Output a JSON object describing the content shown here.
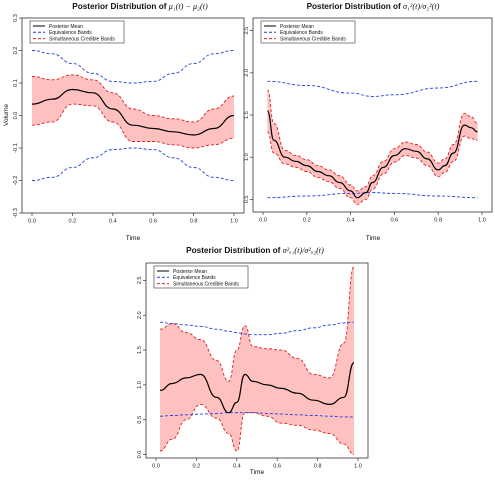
{
  "legend": [
    "Posterior Mean",
    "Equivalence Bands",
    "Simultaneous Credible Bands"
  ],
  "colors": {
    "mean": "#000000",
    "equivalence": "#1f3fe0",
    "credible_line": "#e02020",
    "credible_fill": "#ffc0c0"
  },
  "chart_data": [
    {
      "type": "line",
      "title_prefix": "Posterior Distribution of ",
      "title_math": "μ₁(t) − μ₂(t)",
      "xlabel": "Time",
      "ylabel": "Volume",
      "xlim": [
        0,
        1
      ],
      "ylim": [
        -0.3,
        0.3
      ],
      "xticks": [
        "0.0",
        "0.2",
        "0.4",
        "0.6",
        "0.8",
        "1.0"
      ],
      "yticks": [
        "-0.3",
        "-0.2",
        "-0.1",
        "0.0",
        "0.1",
        "0.2",
        "0.3"
      ],
      "x": [
        0.0,
        0.1,
        0.2,
        0.3,
        0.4,
        0.5,
        0.6,
        0.7,
        0.8,
        0.9,
        1.0
      ],
      "series": [
        {
          "name": "Posterior Mean",
          "values": [
            0.035,
            0.05,
            0.08,
            0.07,
            0.02,
            -0.03,
            -0.04,
            -0.05,
            -0.06,
            -0.04,
            0.0
          ]
        },
        {
          "name": "Simultaneous Credible Bands",
          "upper": [
            0.12,
            0.11,
            0.125,
            0.11,
            0.07,
            0.02,
            0.0,
            -0.01,
            -0.02,
            0.02,
            0.06
          ],
          "lower": [
            -0.03,
            -0.02,
            0.035,
            0.03,
            -0.02,
            -0.08,
            -0.08,
            -0.09,
            -0.1,
            -0.09,
            -0.07
          ]
        },
        {
          "name": "Equivalence Bands",
          "upper": [
            0.2,
            0.19,
            0.16,
            0.13,
            0.105,
            0.1,
            0.105,
            0.13,
            0.16,
            0.19,
            0.2
          ],
          "lower": [
            -0.2,
            -0.19,
            -0.16,
            -0.13,
            -0.105,
            -0.1,
            -0.105,
            -0.13,
            -0.16,
            -0.19,
            -0.2
          ]
        }
      ],
      "legend_position": "top-left"
    },
    {
      "type": "line",
      "title_prefix": "Posterior Distribution of ",
      "title_math": "σ₁²(t)/σ₂²(t)",
      "xlabel": "Time",
      "ylabel": "",
      "xlim": [
        0,
        1
      ],
      "ylim": [
        0.35,
        2.65
      ],
      "xticks": [
        "0.0",
        "0.2",
        "0.4",
        "0.6",
        "0.8",
        "1.0"
      ],
      "yticks": [
        "0.5",
        "1.0",
        "1.5",
        "2.0",
        "2.5"
      ],
      "x": [
        0.02,
        0.05,
        0.1,
        0.15,
        0.2,
        0.25,
        0.3,
        0.35,
        0.4,
        0.43,
        0.47,
        0.5,
        0.55,
        0.6,
        0.65,
        0.7,
        0.75,
        0.8,
        0.83,
        0.87,
        0.92,
        0.95,
        0.98
      ],
      "series": [
        {
          "name": "Posterior Mean",
          "values": [
            1.55,
            1.2,
            1.0,
            0.95,
            0.9,
            0.83,
            0.78,
            0.7,
            0.6,
            0.52,
            0.58,
            0.7,
            0.88,
            1.02,
            1.1,
            1.07,
            0.98,
            0.85,
            0.9,
            1.05,
            1.38,
            1.35,
            1.3
          ]
        },
        {
          "name": "Simultaneous Credible Bands",
          "upper": [
            1.8,
            1.4,
            1.08,
            1.02,
            0.97,
            0.9,
            0.85,
            0.78,
            0.67,
            0.6,
            0.65,
            0.78,
            0.95,
            1.1,
            1.18,
            1.15,
            1.06,
            0.93,
            0.98,
            1.15,
            1.52,
            1.48,
            1.4
          ],
          "lower": [
            1.3,
            1.05,
            0.92,
            0.88,
            0.83,
            0.76,
            0.71,
            0.63,
            0.52,
            0.44,
            0.5,
            0.62,
            0.8,
            0.94,
            1.02,
            0.99,
            0.9,
            0.77,
            0.82,
            0.95,
            1.25,
            1.22,
            1.2
          ]
        },
        {
          "name": "Equivalence Bands",
          "upper_x": [
            0.02,
            0.2,
            0.4,
            0.5,
            0.6,
            0.8,
            0.98
          ],
          "upper": [
            1.9,
            1.85,
            1.76,
            1.72,
            1.74,
            1.82,
            1.9
          ],
          "lower": [
            0.52,
            0.54,
            0.57,
            0.58,
            0.57,
            0.54,
            0.52
          ]
        }
      ],
      "legend_position": "top-left"
    },
    {
      "type": "line",
      "title_prefix": "Posterior Distribution of ",
      "title_math": "σ²ₐ₁(t)/σ²ₐ₂(t)",
      "xlabel": "Time",
      "ylabel": "",
      "xlim": [
        0,
        1
      ],
      "ylim": [
        -0.05,
        2.75
      ],
      "xticks": [
        "0.0",
        "0.2",
        "0.4",
        "0.6",
        "0.8",
        "1.0"
      ],
      "yticks": [
        "0.0",
        "0.5",
        "1.0",
        "1.5",
        "2.0",
        "2.5"
      ],
      "x": [
        0.02,
        0.08,
        0.15,
        0.22,
        0.3,
        0.36,
        0.4,
        0.44,
        0.48,
        0.55,
        0.62,
        0.7,
        0.78,
        0.86,
        0.93,
        0.98
      ],
      "series": [
        {
          "name": "Posterior Mean",
          "values": [
            0.92,
            1.02,
            1.1,
            1.15,
            0.82,
            0.6,
            0.75,
            1.15,
            1.05,
            1.0,
            0.95,
            0.88,
            0.78,
            0.72,
            0.82,
            1.32
          ]
        },
        {
          "name": "Simultaneous Credible Bands",
          "upper": [
            1.8,
            1.88,
            1.75,
            1.65,
            1.35,
            1.05,
            1.5,
            1.85,
            1.55,
            1.52,
            1.5,
            1.38,
            1.15,
            1.1,
            1.6,
            2.7
          ],
          "lower": [
            0.05,
            0.22,
            0.5,
            0.72,
            0.52,
            0.3,
            0.05,
            0.6,
            0.6,
            0.55,
            0.45,
            0.42,
            0.35,
            0.3,
            0.15,
            0.0
          ]
        },
        {
          "name": "Equivalence Bands",
          "upper": [
            1.9,
            1.88,
            1.86,
            1.84,
            1.8,
            1.77,
            1.75,
            1.73,
            1.72,
            1.72,
            1.74,
            1.78,
            1.82,
            1.86,
            1.89,
            1.9
          ],
          "lower": [
            0.55,
            0.56,
            0.57,
            0.58,
            0.59,
            0.6,
            0.6,
            0.6,
            0.6,
            0.59,
            0.58,
            0.57,
            0.56,
            0.55,
            0.54,
            0.54
          ]
        }
      ],
      "legend_position": "top-left"
    }
  ]
}
